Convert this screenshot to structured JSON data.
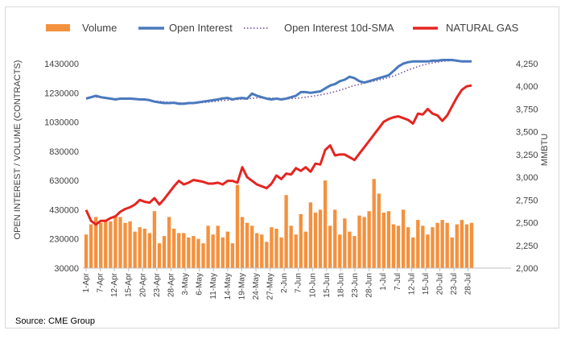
{
  "chart_data": {
    "type": "bar+line",
    "legend": [
      "Volume",
      "Open Interest",
      "Open Interest 10d-SMA",
      "NATURAL GAS"
    ],
    "y_left_label": "OPEN INTEREST / VOLUME (CONTRACTS)",
    "y_right_label": "MMBTU",
    "source": "Source: CME Group",
    "y_left_ticks": [
      "1430000",
      "1230000",
      "1030000",
      "830000",
      "630000",
      "430000",
      "230000",
      "30000"
    ],
    "y_left_range": [
      30000,
      1430000
    ],
    "y_right_ticks": [
      "4,250",
      "4,000",
      "3,750",
      "3,500",
      "3,250",
      "3,000",
      "2,750",
      "2,500",
      "2,250",
      "2,000"
    ],
    "y_right_range": [
      2000,
      4250
    ],
    "x_ticks": [
      "1-Apr",
      "7-Apr",
      "12-Apr",
      "15-Apr",
      "20-Apr",
      "23-Apr",
      "28-Apr",
      "3-May",
      "6-May",
      "11-May",
      "14-May",
      "19-May",
      "24-May",
      "27-May",
      "2-Jun",
      "7-Jun",
      "10-Jun",
      "15-Jun",
      "18-Jun",
      "23-Jun",
      "28-Jun",
      "1-Jul",
      "7-Jul",
      "12-Jul",
      "15-Jul",
      "20-Jul",
      "23-Jul",
      "28-Jul"
    ],
    "volume": [
      260000,
      330000,
      380000,
      340000,
      360000,
      350000,
      390000,
      380000,
      340000,
      350000,
      280000,
      310000,
      300000,
      270000,
      420000,
      200000,
      250000,
      380000,
      300000,
      270000,
      270000,
      240000,
      250000,
      230000,
      200000,
      320000,
      260000,
      320000,
      240000,
      280000,
      200000,
      600000,
      380000,
      340000,
      320000,
      270000,
      260000,
      210000,
      310000,
      300000,
      240000,
      530000,
      320000,
      260000,
      400000,
      280000,
      480000,
      410000,
      430000,
      630000,
      320000,
      430000,
      260000,
      370000,
      280000,
      250000,
      390000,
      380000,
      420000,
      640000,
      540000,
      410000,
      420000,
      330000,
      320000,
      430000,
      310000,
      240000,
      360000,
      320000,
      260000,
      310000,
      340000,
      360000,
      340000,
      240000,
      330000,
      360000,
      330000,
      340000
    ],
    "open_interest": [
      1190000,
      1200000,
      1210000,
      1200000,
      1195000,
      1190000,
      1185000,
      1190000,
      1190000,
      1190000,
      1188000,
      1185000,
      1185000,
      1180000,
      1170000,
      1165000,
      1160000,
      1160000,
      1162000,
      1155000,
      1155000,
      1160000,
      1160000,
      1165000,
      1170000,
      1175000,
      1180000,
      1185000,
      1192000,
      1195000,
      1185000,
      1192000,
      1195000,
      1190000,
      1225000,
      1210000,
      1200000,
      1190000,
      1185000,
      1190000,
      1185000,
      1190000,
      1200000,
      1210000,
      1235000,
      1235000,
      1230000,
      1235000,
      1240000,
      1260000,
      1280000,
      1290000,
      1310000,
      1320000,
      1340000,
      1330000,
      1310000,
      1300000,
      1310000,
      1320000,
      1330000,
      1340000,
      1350000,
      1380000,
      1410000,
      1430000,
      1440000,
      1445000,
      1445000,
      1445000,
      1445000,
      1450000,
      1450000,
      1455000,
      1455000,
      1455000,
      1450000,
      1445000,
      1445000,
      1445000
    ],
    "open_interest_10d_sma": [
      1195000,
      1198000,
      1200000,
      1198000,
      1196000,
      1193000,
      1190000,
      1188000,
      1188000,
      1186000,
      1184000,
      1182000,
      1180000,
      1178000,
      1175000,
      1172000,
      1168000,
      1166000,
      1164000,
      1162000,
      1160000,
      1160000,
      1160000,
      1161000,
      1163000,
      1166000,
      1170000,
      1173000,
      1177000,
      1180000,
      1182000,
      1184000,
      1186000,
      1188000,
      1192000,
      1195000,
      1196000,
      1195000,
      1194000,
      1192000,
      1190000,
      1190000,
      1190000,
      1192000,
      1196000,
      1200000,
      1205000,
      1210000,
      1215000,
      1222000,
      1230000,
      1238000,
      1248000,
      1258000,
      1270000,
      1280000,
      1288000,
      1296000,
      1303000,
      1310000,
      1318000,
      1326000,
      1335000,
      1345000,
      1358000,
      1372000,
      1386000,
      1398000,
      1410000,
      1420000,
      1428000,
      1435000,
      1440000,
      1445000,
      1448000,
      1450000,
      1450000,
      1450000,
      1449000,
      1448000
    ],
    "natural_gas": [
      2640,
      2520,
      2480,
      2520,
      2520,
      2550,
      2570,
      2620,
      2650,
      2670,
      2700,
      2750,
      2730,
      2720,
      2770,
      2700,
      2760,
      2830,
      2900,
      2960,
      2920,
      2940,
      2970,
      2960,
      2950,
      2930,
      2930,
      2940,
      2920,
      2960,
      2960,
      2940,
      3110,
      3000,
      2960,
      2920,
      2900,
      2880,
      2930,
      3020,
      2980,
      3040,
      3030,
      3100,
      3070,
      3110,
      3060,
      3150,
      3140,
      3300,
      3350,
      3240,
      3250,
      3250,
      3220,
      3190,
      3260,
      3330,
      3400,
      3470,
      3540,
      3610,
      3640,
      3660,
      3670,
      3650,
      3630,
      3590,
      3700,
      3690,
      3750,
      3700,
      3680,
      3620,
      3680,
      3780,
      3880,
      3960,
      4000,
      4010
    ]
  }
}
